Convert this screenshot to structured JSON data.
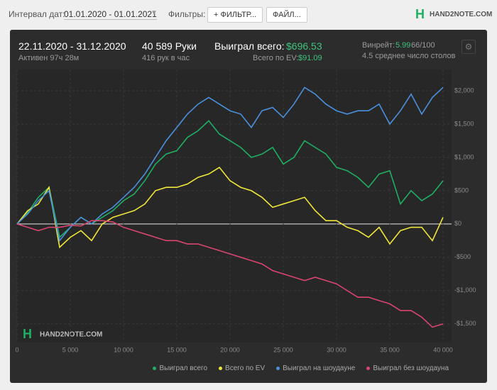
{
  "header": {
    "date_label": "Интервал дат:",
    "date_range": "01.01.2020 - 01.01.2021",
    "filters_label": "Фильтры:",
    "filter_button": "+ ФИЛЬТР...",
    "file_button": "ФАЙЛ...",
    "logo": "HAND2NOTE.COM"
  },
  "stats": {
    "period": "22.11.2020 - 31.12.2020",
    "active": "Активен 97ч 28м",
    "hands": "40 589 Руки",
    "hands_per_hour": "416 рук в час",
    "won_label": "Выиграл всего:",
    "won_value": "$696.53",
    "ev_label": "Всего по EV:",
    "ev_value": "$91.09",
    "winrate_label": "Винрейт:",
    "winrate_value": "5.99",
    "winrate_unit": "66/100",
    "tables": "4.5 среднее число столов"
  },
  "chart_data": {
    "type": "line",
    "watermark": "HAND2NOTE.COM",
    "x": [
      0,
      1000,
      2000,
      3000,
      4000,
      5000,
      6000,
      7000,
      8000,
      9000,
      10000,
      11000,
      12000,
      13000,
      14000,
      15000,
      16000,
      17000,
      18000,
      19000,
      20000,
      21000,
      22000,
      23000,
      24000,
      25000,
      26000,
      27000,
      28000,
      29000,
      30000,
      31000,
      32000,
      33000,
      34000,
      35000,
      36000,
      37000,
      38000,
      39000,
      40000
    ],
    "series": [
      {
        "name": "Выиграл всего",
        "color": "#1fae62",
        "values": [
          0,
          170,
          400,
          550,
          -200,
          -50,
          100,
          0,
          100,
          200,
          350,
          450,
          650,
          900,
          1050,
          1100,
          1300,
          1400,
          1550,
          1350,
          1250,
          1150,
          1000,
          1050,
          1150,
          900,
          1000,
          1250,
          1150,
          1050,
          850,
          800,
          700,
          550,
          750,
          800,
          300,
          500,
          350,
          450,
          650
        ]
      },
      {
        "name": "Всего по EV",
        "color": "#eee63a",
        "values": [
          0,
          200,
          300,
          550,
          -350,
          -200,
          -100,
          -250,
          0,
          100,
          150,
          200,
          300,
          500,
          550,
          550,
          600,
          700,
          750,
          850,
          650,
          550,
          500,
          400,
          250,
          300,
          350,
          400,
          200,
          50,
          50,
          -50,
          -100,
          -200,
          -50,
          -300,
          -100,
          -50,
          -50,
          -250,
          100
        ]
      },
      {
        "name": "Выиграл на шоудауне",
        "color": "#4a90dc",
        "values": [
          0,
          150,
          350,
          500,
          -250,
          -50,
          100,
          0,
          150,
          250,
          400,
          550,
          750,
          1000,
          1250,
          1450,
          1650,
          1800,
          1900,
          1800,
          1700,
          1650,
          1450,
          1700,
          1750,
          1600,
          1800,
          2050,
          1950,
          1800,
          1700,
          1650,
          1700,
          1700,
          1800,
          1500,
          1700,
          1950,
          1650,
          1900,
          2050
        ]
      },
      {
        "name": "Выиграл без шоудауна",
        "color": "#d9456f",
        "values": [
          0,
          -50,
          -100,
          -50,
          -50,
          -20,
          -30,
          50,
          50,
          30,
          -50,
          -100,
          -150,
          -200,
          -250,
          -250,
          -300,
          -300,
          -350,
          -400,
          -450,
          -500,
          -550,
          -600,
          -700,
          -750,
          -800,
          -850,
          -800,
          -850,
          -900,
          -1000,
          -1100,
          -1100,
          -1150,
          -1200,
          -1300,
          -1300,
          -1400,
          -1550,
          -1500
        ]
      }
    ],
    "xlim": [
      0,
      40800
    ],
    "ylim": [
      -1780,
      2320
    ],
    "xticks": [
      0,
      {
        "value": 5000,
        "label": "5 000"
      },
      {
        "value": 10000,
        "label": "10 000"
      },
      {
        "value": 15000,
        "label": "15 000"
      },
      {
        "value": 20000,
        "label": "20 000"
      },
      {
        "value": 25000,
        "label": "25 000"
      },
      {
        "value": 30000,
        "label": "30 000"
      },
      {
        "value": 35000,
        "label": "35 000"
      },
      {
        "value": 40000,
        "label": "40 000"
      }
    ],
    "yticks": [
      {
        "value": -1500,
        "label": "-$1,500"
      },
      {
        "value": -1000,
        "label": "-$1,000"
      },
      {
        "value": -500,
        "label": "-$500"
      },
      {
        "value": 0,
        "label": "$0"
      },
      {
        "value": 500,
        "label": "$500"
      },
      {
        "value": 1000,
        "label": "$1,000"
      },
      {
        "value": 1500,
        "label": "$1,500"
      },
      {
        "value": 2000,
        "label": "$2,000"
      }
    ],
    "grid": true
  }
}
